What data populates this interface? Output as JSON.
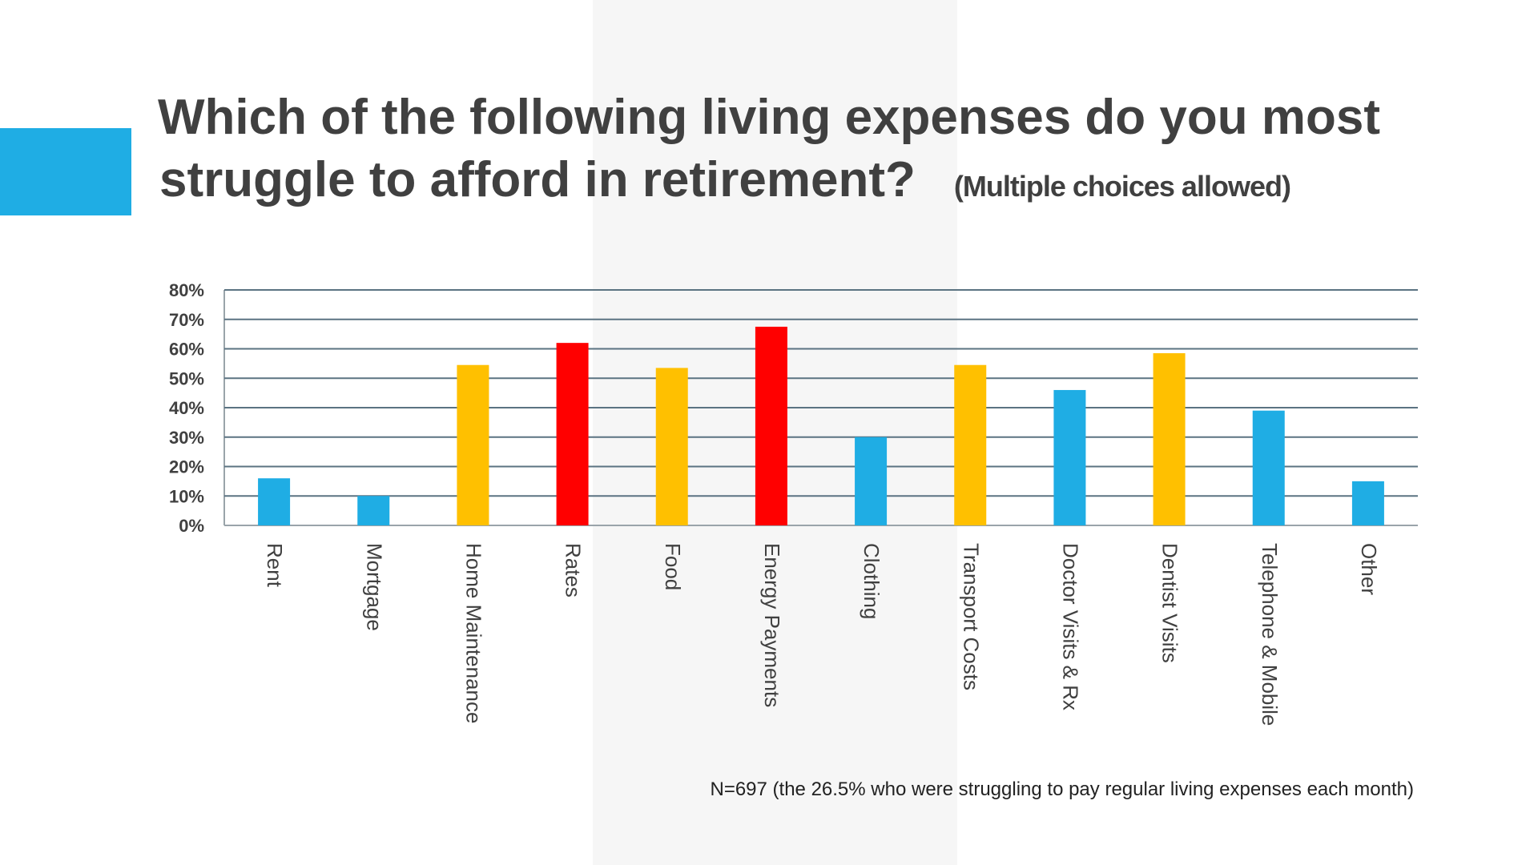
{
  "title": {
    "line1": "Which  of the following living expenses do you most",
    "line2": "struggle to afford in retirement?",
    "subtitle": "(Multiple choices allowed)"
  },
  "footnote": "N=697 (the 26.5% who were struggling to pay regular living expenses each month)",
  "colors": {
    "accent": "#1fade4",
    "blue": "#1fade4",
    "yellow": "#ffc000",
    "red": "#ff0000",
    "grid": "#5b7382",
    "text": "#404040"
  },
  "chart_data": {
    "type": "bar",
    "title": "Which  of the following living expenses do you most struggle to afford in retirement?",
    "xlabel": "",
    "ylabel": "",
    "ylim": [
      0,
      80
    ],
    "yticks": [
      0,
      10,
      20,
      30,
      40,
      50,
      60,
      70,
      80
    ],
    "ytick_labels": [
      "0%",
      "10%",
      "20%",
      "30%",
      "40%",
      "50%",
      "60%",
      "70%",
      "80%"
    ],
    "grid": true,
    "categories": [
      "Rent",
      "Mortgage",
      "Home Maintenance",
      "Rates",
      "Food",
      "Energy Payments",
      "Clothing",
      "Transport Costs",
      "Doctor Visits & Rx",
      "Dentist Visits",
      "Telephone & Mobile",
      "Other"
    ],
    "values": [
      16,
      10,
      54.5,
      62,
      53.5,
      67.5,
      30,
      54.5,
      46,
      58.5,
      39,
      15
    ],
    "bar_colors": [
      "blue",
      "blue",
      "yellow",
      "red",
      "yellow",
      "red",
      "blue",
      "yellow",
      "blue",
      "yellow",
      "blue",
      "blue"
    ]
  }
}
